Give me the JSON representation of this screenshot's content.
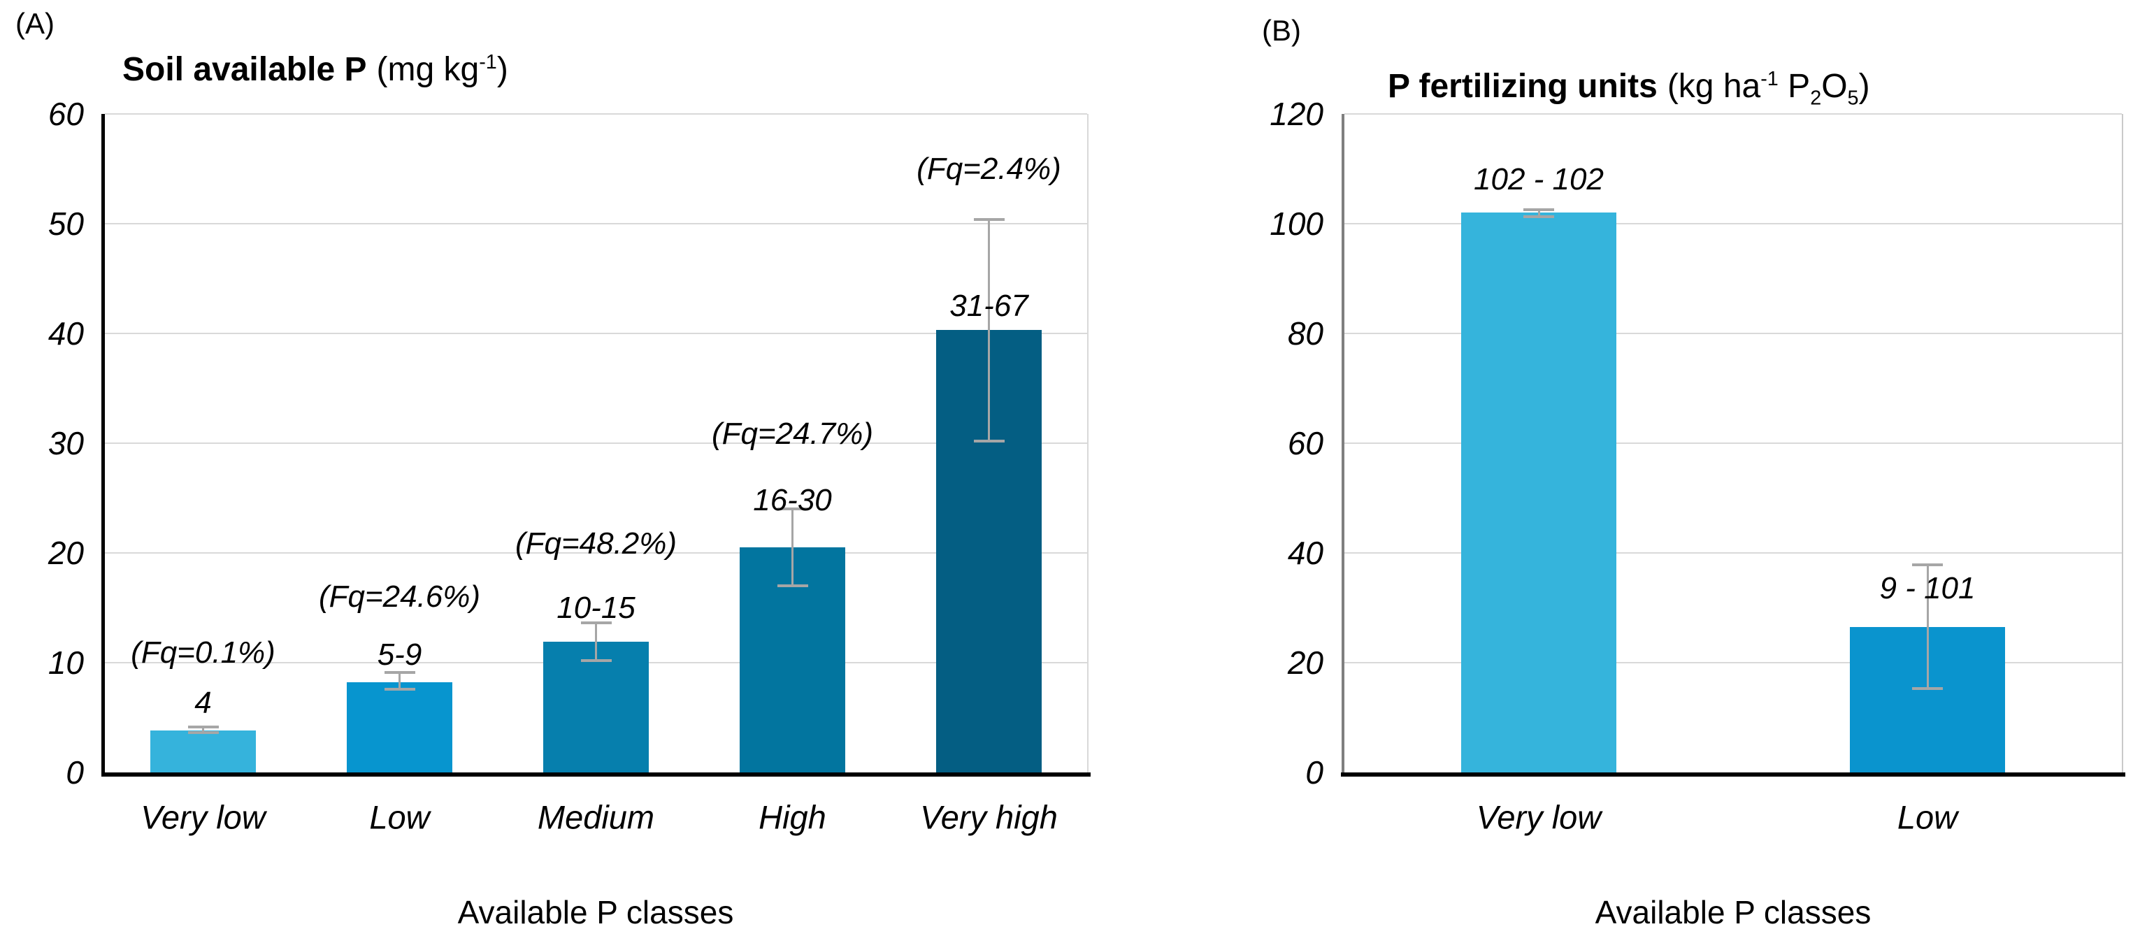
{
  "figure": {
    "background": "#FFFFFF",
    "panels": [
      "(A)",
      "(B)"
    ]
  },
  "chart_data": [
    {
      "type": "bar",
      "panel_label": "(A)",
      "title_bold": "Soil available P",
      "title_unit": "(mg kg^{-1})",
      "xlabel": "Available P classes",
      "ylim": [
        0,
        60
      ],
      "yticks": [
        "0",
        "10",
        "20",
        "30",
        "40",
        "50",
        "60"
      ],
      "grid": true,
      "legend": false,
      "categories": [
        "Very low",
        "Low",
        "Medium",
        "High",
        "Very high"
      ],
      "values": [
        3.8,
        8.2,
        11.9,
        20.5,
        40.3
      ],
      "error_low": [
        3.6,
        7.6,
        10.2,
        17.0,
        30.2
      ],
      "error_high": [
        4.15,
        9.1,
        13.6,
        24.0,
        50.4
      ],
      "bar_labels": [
        "4",
        "5-9",
        "10-15",
        "16-30",
        "31-67"
      ],
      "bar_label_y": [
        6.3,
        10.7,
        15.0,
        24.8,
        42.5
      ],
      "annotations": [
        {
          "text": "(Fq=0.1%)",
          "y": 10.9
        },
        {
          "text": "(Fq=24.6%)",
          "y": 16.0
        },
        {
          "text": "(Fq=48.2%)",
          "y": 20.8
        },
        {
          "text": "(Fq=24.7%)",
          "y": 30.8
        },
        {
          "text": "(Fq=2.4%)",
          "y": 55.0
        }
      ],
      "bar_colors": [
        "#35B3DC",
        "#0795CF",
        "#067FAD",
        "#02759F",
        "#045E83"
      ]
    },
    {
      "type": "bar",
      "panel_label": "(B)",
      "title_bold": "P fertilizing units",
      "title_unit": "(kg ha^{-1} P_{2}O_{5})",
      "xlabel": "Available P classes",
      "ylim": [
        0,
        120
      ],
      "yticks": [
        "0",
        "20",
        "40",
        "60",
        "80",
        "100",
        "120"
      ],
      "grid": true,
      "legend": false,
      "categories": [
        "Very low",
        "Low"
      ],
      "values": [
        102,
        26.5
      ],
      "error_low": [
        101.3,
        15.3
      ],
      "error_high": [
        102.6,
        37.8
      ],
      "bar_labels": [
        "102 - 102",
        "9 - 101"
      ],
      "bar_label_y": [
        108,
        33.5
      ],
      "annotations": [],
      "bar_colors": [
        "#35B4DC",
        "#0A94CE"
      ]
    }
  ],
  "style": {
    "gridline_color": "#D9D9D9",
    "error_bar_color": "#A6A6A6",
    "axis_black": "#000000",
    "frame_gray": "#C9C9C9",
    "spine_gray": "#7F7F7F",
    "text_color": "#000000"
  }
}
